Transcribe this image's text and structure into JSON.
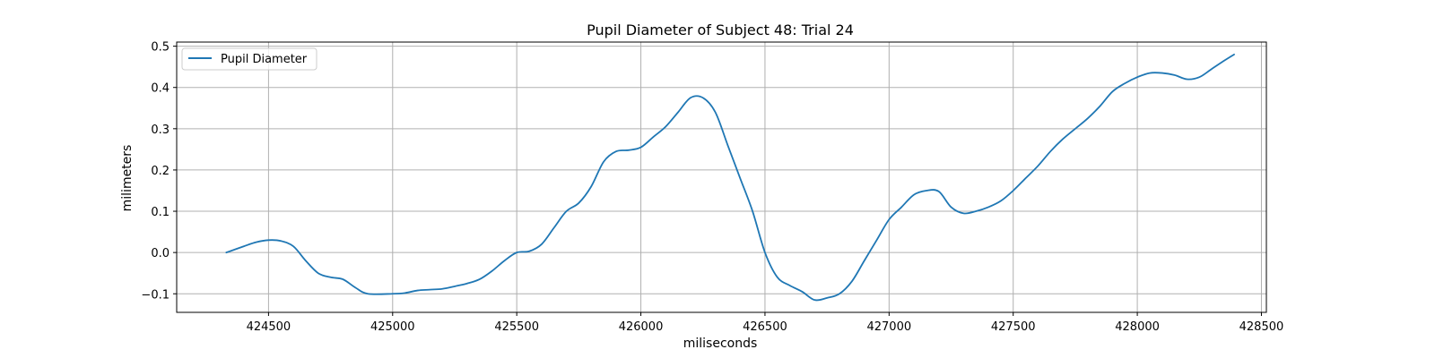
{
  "chart_data": {
    "type": "line",
    "title": "Pupil Diameter of Subject 48: Trial 24",
    "xlabel": "miliseconds",
    "ylabel": "milimeters",
    "xlim": [
      424130,
      428520
    ],
    "ylim": [
      -0.145,
      0.51
    ],
    "xticks": [
      424500,
      425000,
      425500,
      426000,
      426500,
      427000,
      427500,
      428000,
      428500
    ],
    "yticks": [
      -0.1,
      0.0,
      0.1,
      0.2,
      0.3,
      0.4,
      0.5
    ],
    "ytick_labels": [
      "−0.1",
      "0.0",
      "0.1",
      "0.2",
      "0.3",
      "0.4",
      "0.5"
    ],
    "grid": true,
    "legend": {
      "position": "upper-left",
      "entries": [
        "Pupil Diameter"
      ]
    },
    "colors": {
      "series": "#1f77b4",
      "grid": "#b0b0b0"
    },
    "series": [
      {
        "name": "Pupil Diameter",
        "x": [
          424330,
          424400,
          424450,
          424500,
          424550,
          424600,
          424650,
          424700,
          424750,
          424800,
          424850,
          424900,
          425000,
          425050,
          425100,
          425150,
          425200,
          425250,
          425300,
          425350,
          425400,
          425450,
          425500,
          425550,
          425600,
          425650,
          425700,
          425750,
          425800,
          425850,
          425900,
          425950,
          426000,
          426050,
          426100,
          426150,
          426200,
          426250,
          426300,
          426350,
          426400,
          426450,
          426500,
          426550,
          426600,
          426650,
          426700,
          426750,
          426800,
          426850,
          426900,
          426950,
          427000,
          427050,
          427100,
          427150,
          427200,
          427250,
          427300,
          427350,
          427400,
          427450,
          427500,
          427550,
          427600,
          427650,
          427700,
          427750,
          427800,
          427850,
          427900,
          427950,
          428000,
          428050,
          428100,
          428150,
          428200,
          428250,
          428300,
          428350,
          428390
        ],
        "y": [
          0.0,
          0.015,
          0.025,
          0.03,
          0.028,
          0.015,
          -0.02,
          -0.05,
          -0.06,
          -0.065,
          -0.085,
          -0.1,
          -0.1,
          -0.098,
          -0.092,
          -0.09,
          -0.088,
          -0.082,
          -0.075,
          -0.065,
          -0.045,
          -0.02,
          0.0,
          0.003,
          0.02,
          0.06,
          0.1,
          0.12,
          0.16,
          0.22,
          0.245,
          0.248,
          0.255,
          0.28,
          0.305,
          0.34,
          0.375,
          0.375,
          0.34,
          0.26,
          0.18,
          0.1,
          0.0,
          -0.06,
          -0.08,
          -0.095,
          -0.115,
          -0.11,
          -0.1,
          -0.07,
          -0.02,
          0.03,
          0.08,
          0.11,
          0.14,
          0.15,
          0.148,
          0.11,
          0.095,
          0.1,
          0.11,
          0.125,
          0.15,
          0.18,
          0.21,
          0.245,
          0.275,
          0.3,
          0.325,
          0.355,
          0.39,
          0.41,
          0.425,
          0.435,
          0.435,
          0.43,
          0.42,
          0.425,
          0.445,
          0.465,
          0.48
        ]
      }
    ]
  }
}
